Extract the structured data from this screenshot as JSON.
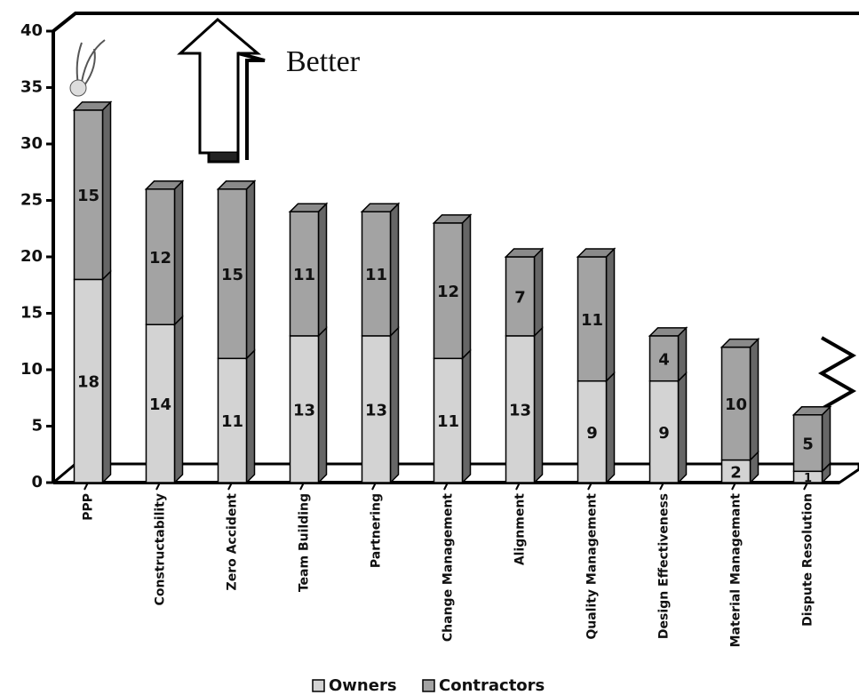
{
  "chart_data": {
    "type": "stacked-bar-3d",
    "categories": [
      "PPP",
      "Constructability",
      "Zero Accident",
      "Team Building",
      "Partnering",
      "Change Management",
      "Alignment",
      "Quality Management",
      "Design Effectiveness",
      "Material Managemant",
      "Dispute Resolution"
    ],
    "series": [
      {
        "name": "Owners",
        "color": "#d3d3d3",
        "values": [
          18,
          14,
          11,
          13,
          13,
          11,
          13,
          9,
          9,
          2,
          1
        ]
      },
      {
        "name": "Contractors",
        "color": "#a3a3a3",
        "values": [
          15,
          12,
          15,
          11,
          11,
          12,
          7,
          11,
          4,
          10,
          5
        ]
      }
    ],
    "ylim": [
      0,
      40
    ],
    "yticks": [
      0,
      5,
      10,
      15,
      20,
      25,
      30,
      35,
      40
    ],
    "annotation": "Better",
    "legend": "bottom"
  }
}
